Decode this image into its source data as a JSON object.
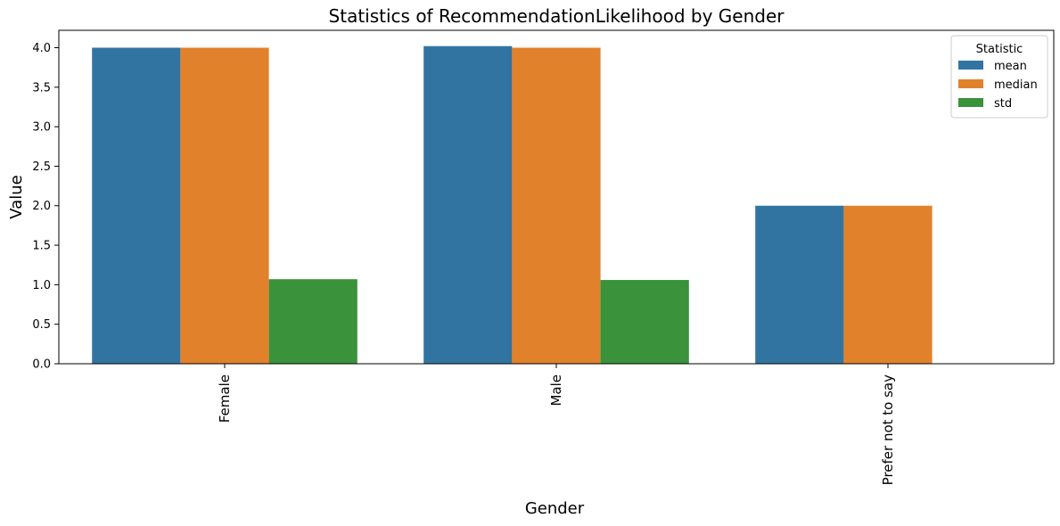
{
  "chart_data": {
    "type": "bar",
    "title": "Statistics of RecommendationLikelihood by Gender",
    "xlabel": "Gender",
    "ylabel": "Value",
    "categories": [
      "Female",
      "Male",
      "Prefer not to say"
    ],
    "series": [
      {
        "name": "mean",
        "color": "#3274a1",
        "values": [
          4.0,
          4.02,
          2.0
        ]
      },
      {
        "name": "median",
        "color": "#e1812c",
        "values": [
          4.0,
          4.0,
          2.0
        ]
      },
      {
        "name": "std",
        "color": "#3a923a",
        "values": [
          1.07,
          1.06,
          null
        ]
      }
    ],
    "ylim": [
      0,
      4.22
    ],
    "yticks": [
      "0.0",
      "0.5",
      "1.0",
      "1.5",
      "2.0",
      "2.5",
      "3.0",
      "3.5",
      "4.0"
    ],
    "legend": {
      "title": "Statistic",
      "position": "top-right"
    },
    "grid": false
  }
}
